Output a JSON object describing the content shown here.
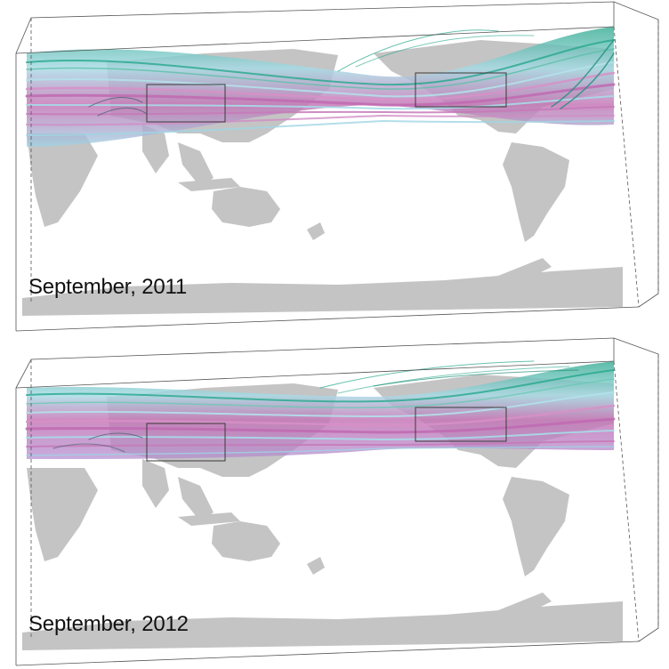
{
  "figure": {
    "panels": [
      {
        "caption": "September, 2011"
      },
      {
        "caption": "September, 2012"
      }
    ]
  },
  "colors": {
    "land": "#c4c4c4",
    "streamline_teal": "#27a88c",
    "streamline_cyan": "#9fd9e6",
    "streamline_magenta": "#c06ab2",
    "box_edge": "#4a4a4a"
  }
}
